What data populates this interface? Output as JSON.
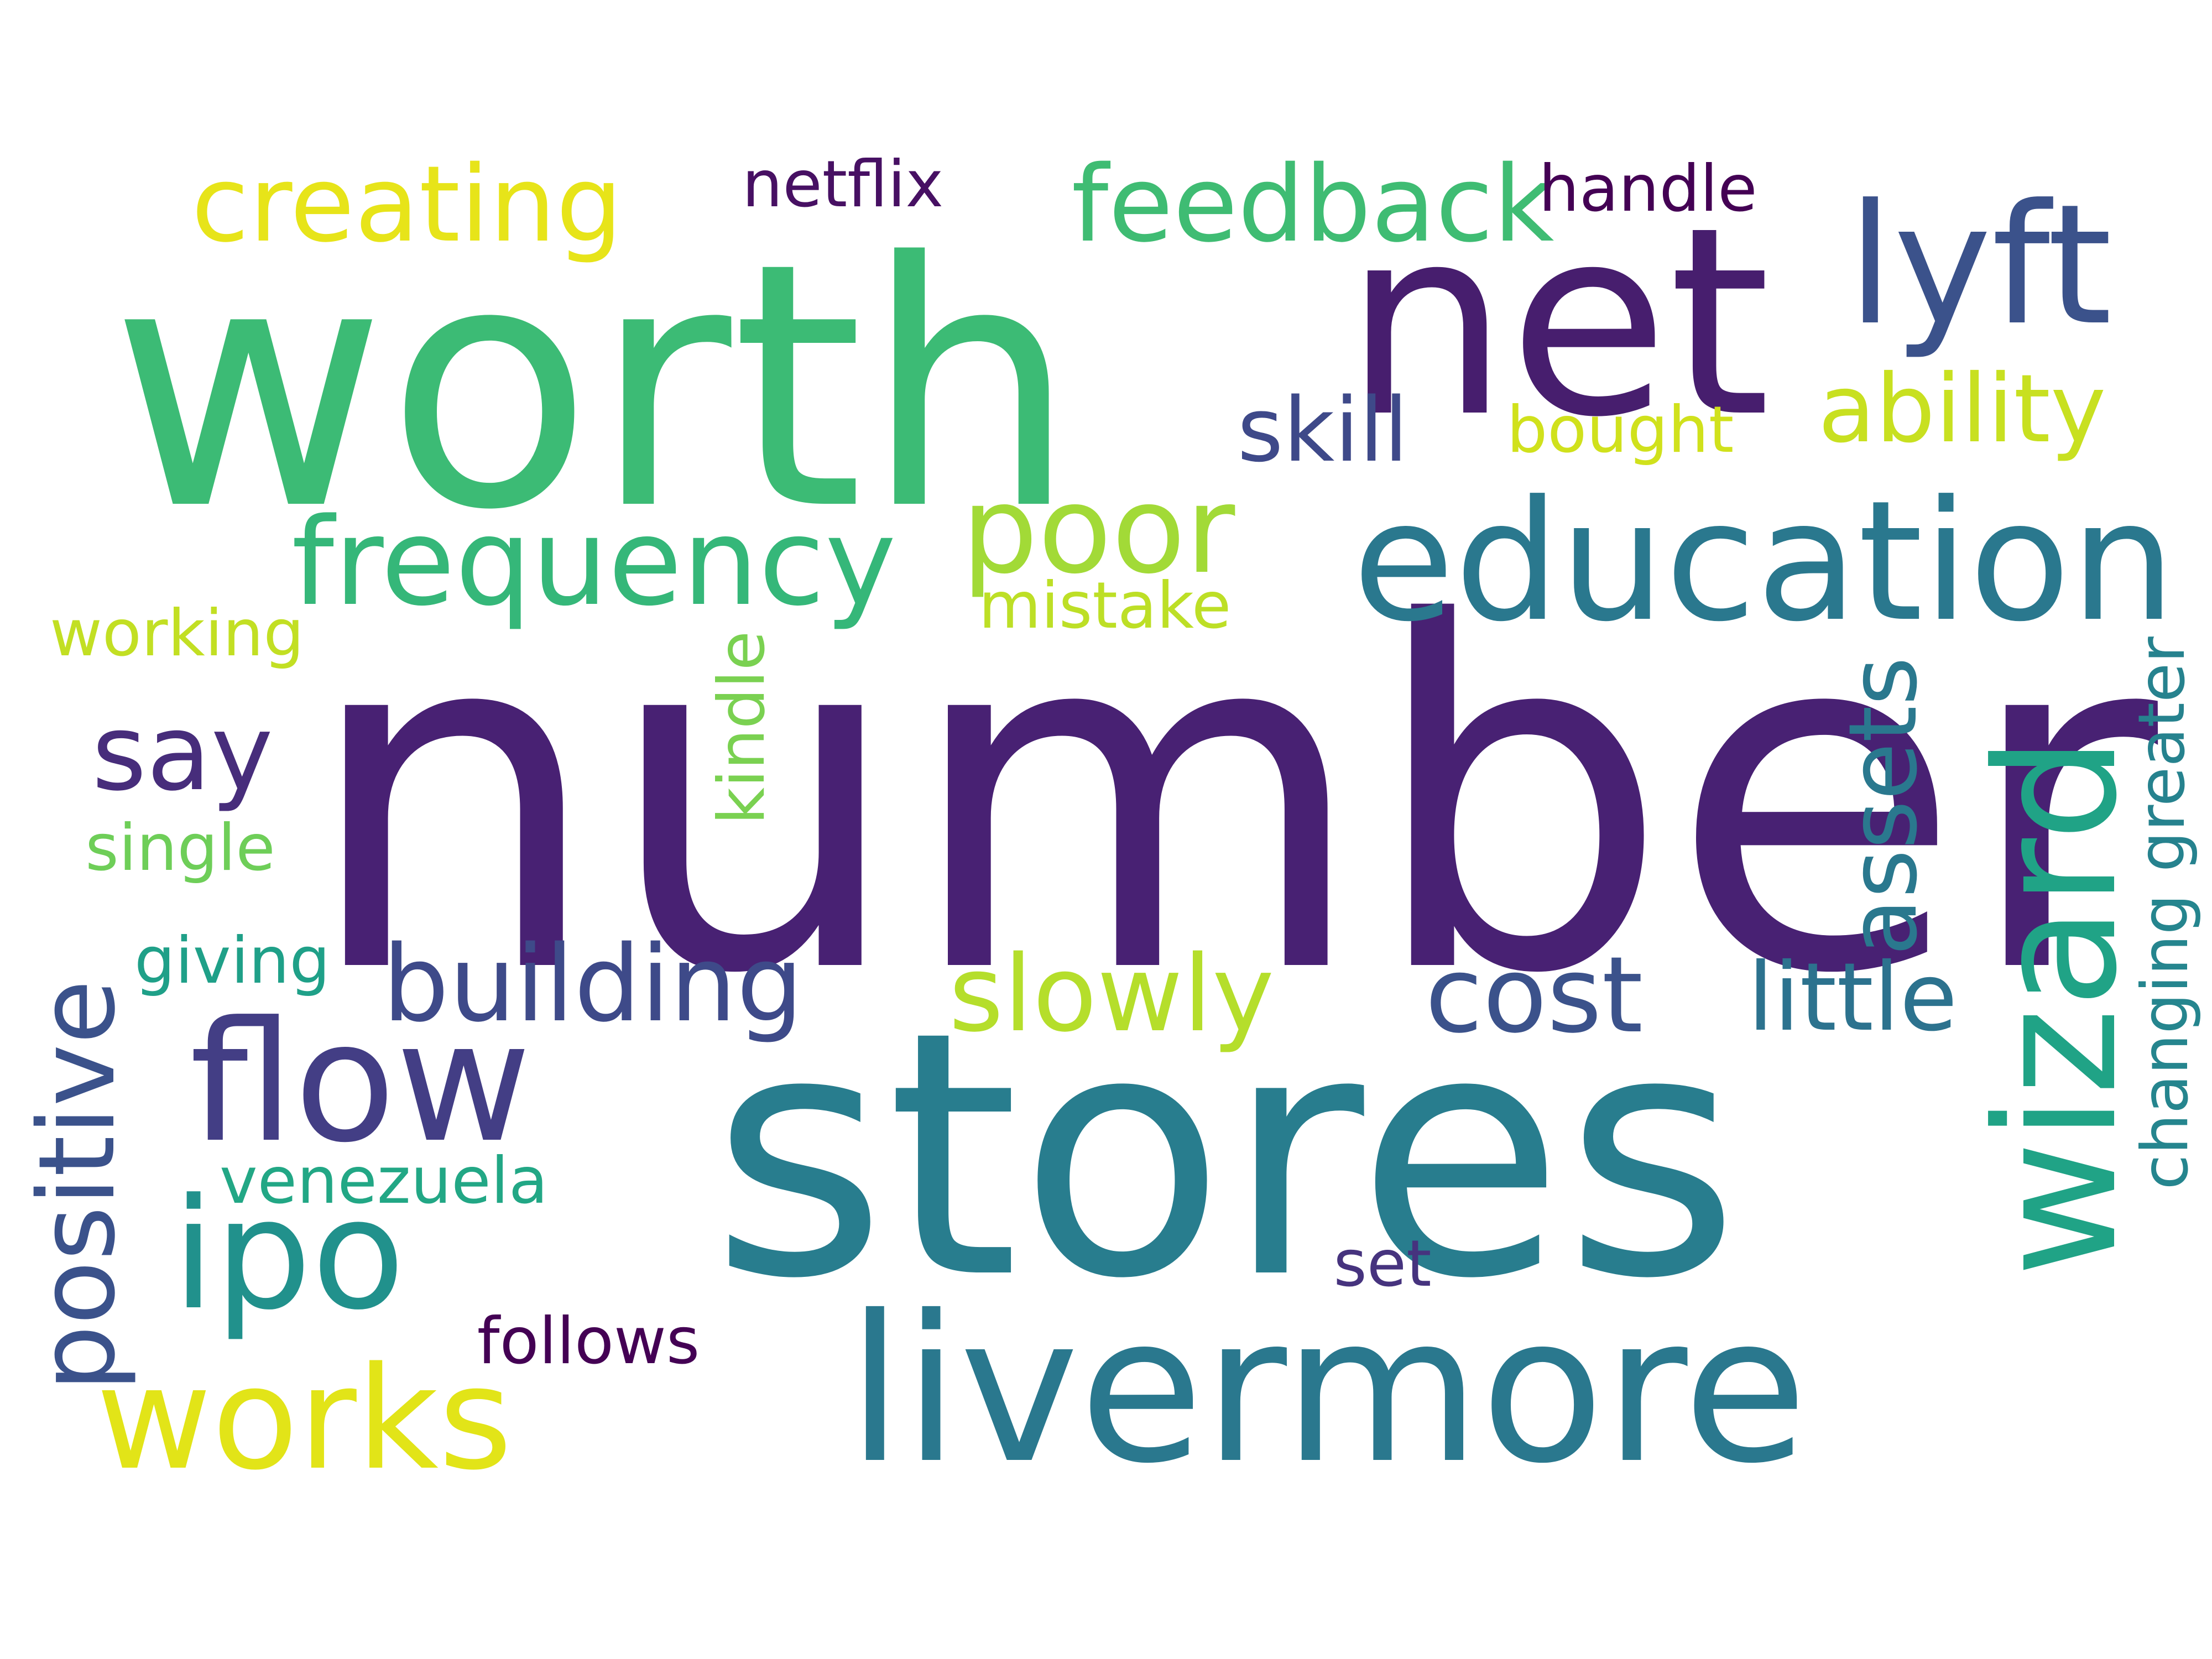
{
  "words": {
    "number": {
      "text": "number",
      "color": "#482173"
    },
    "worth": {
      "text": "worth",
      "color": "#3cbb75"
    },
    "stores": {
      "text": "stores",
      "color": "#287d8e"
    },
    "net": {
      "text": "net",
      "color": "#471e6e"
    },
    "livermore": {
      "text": "livermore",
      "color": "#2a788e"
    },
    "lyft": {
      "text": "lyft",
      "color": "#3b528b"
    },
    "education": {
      "text": "education",
      "color": "#2a788e"
    },
    "wizard": {
      "text": "wizard",
      "color": "#20a386"
    },
    "flow": {
      "text": "flow",
      "color": "#433e85"
    },
    "ipo": {
      "text": "ipo",
      "color": "#21918c"
    },
    "works": {
      "text": "works",
      "color": "#e2e418"
    },
    "frequency": {
      "text": "frequency",
      "color": "#35b779"
    },
    "poor": {
      "text": "poor",
      "color": "#a2da37"
    },
    "creating": {
      "text": "creating",
      "color": "#e7e419"
    },
    "feedback": {
      "text": "feedback",
      "color": "#3fbc73"
    },
    "say": {
      "text": "say",
      "color": "#472d7b"
    },
    "building": {
      "text": "building",
      "color": "#3e4a89"
    },
    "slowly": {
      "text": "slowly",
      "color": "#b5de2b"
    },
    "cost": {
      "text": "cost",
      "color": "#3b528b"
    },
    "positive": {
      "text": "positive",
      "color": "#3b528b"
    },
    "ability": {
      "text": "ability",
      "color": "#c8e020"
    },
    "assets": {
      "text": "assets",
      "color": "#2a788e"
    },
    "little": {
      "text": "little",
      "color": "#2c728e"
    },
    "skill": {
      "text": "skill",
      "color": "#3e4989"
    },
    "netflix": {
      "text": "netflix",
      "color": "#471063"
    },
    "handle": {
      "text": "handle",
      "color": "#440154"
    },
    "bought": {
      "text": "bought",
      "color": "#d0e11c"
    },
    "mistake": {
      "text": "mistake",
      "color": "#bddf26"
    },
    "working": {
      "text": "working",
      "color": "#c2df23"
    },
    "kindle": {
      "text": "kindle",
      "color": "#7ad151"
    },
    "greater": {
      "text": "greater",
      "color": "#26828e"
    },
    "single": {
      "text": "single",
      "color": "#6ece58"
    },
    "giving": {
      "text": "giving",
      "color": "#1fa088"
    },
    "changing": {
      "text": "changing",
      "color": "#25858e"
    },
    "venezuela": {
      "text": "venezuela",
      "color": "#22a785"
    },
    "set": {
      "text": "set",
      "color": "#46337e"
    },
    "follows": {
      "text": "follows",
      "color": "#440154"
    }
  }
}
